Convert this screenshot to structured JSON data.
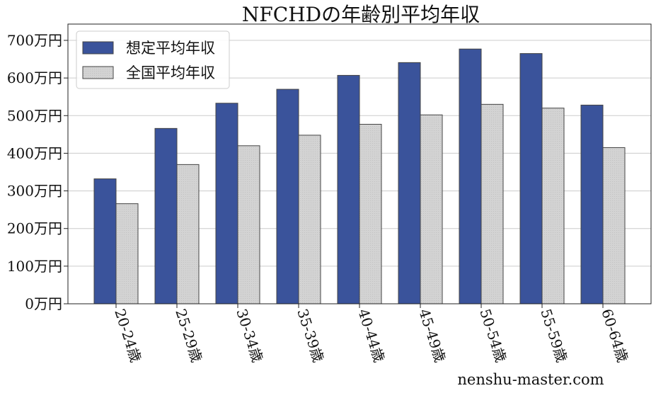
{
  "chart_data": {
    "type": "bar",
    "title": "NFCHDの年齢別平均年収",
    "categories": [
      "20-24歳",
      "25-29歳",
      "30-34歳",
      "35-39歳",
      "40-44歳",
      "45-49歳",
      "50-54歳",
      "55-59歳",
      "60-64歳"
    ],
    "series": [
      {
        "name": "想定平均年収",
        "color": "#3a539b",
        "values": [
          332,
          466,
          533,
          570,
          607,
          641,
          677,
          665,
          528
        ]
      },
      {
        "name": "全国平均年収",
        "color": "#d3d3d3",
        "values": [
          266,
          370,
          420,
          448,
          477,
          502,
          530,
          520,
          415
        ]
      }
    ],
    "yticks": [
      "0万円",
      "100万円",
      "200万円",
      "300万円",
      "400万円",
      "500万円",
      "600万円",
      "700万円"
    ],
    "ylim": [
      0,
      700
    ],
    "grid": true,
    "legend_position": "top-left"
  },
  "watermark": "nenshu-master.com"
}
